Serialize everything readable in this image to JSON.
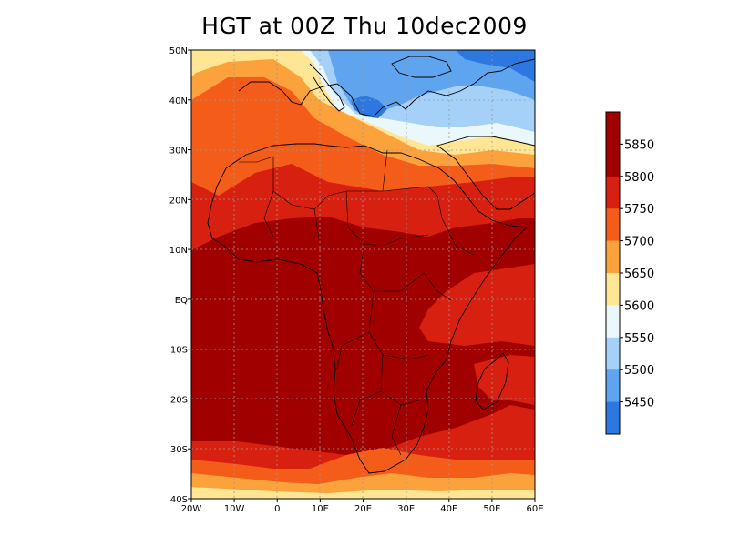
{
  "title": "HGT at 00Z Thu 10dec2009",
  "map": {
    "lon_range": [
      -20,
      60
    ],
    "lat_range": [
      -40,
      50
    ],
    "lat_ticks": [
      {
        "value": 50,
        "label": "50N"
      },
      {
        "value": 40,
        "label": "40N"
      },
      {
        "value": 30,
        "label": "30N"
      },
      {
        "value": 20,
        "label": "20N"
      },
      {
        "value": 10,
        "label": "10N"
      },
      {
        "value": 0,
        "label": "EQ"
      },
      {
        "value": -10,
        "label": "10S"
      },
      {
        "value": -20,
        "label": "20S"
      },
      {
        "value": -30,
        "label": "30S"
      },
      {
        "value": -40,
        "label": "40S"
      }
    ],
    "lon_ticks": [
      {
        "value": -20,
        "label": "20W"
      },
      {
        "value": -10,
        "label": "10W"
      },
      {
        "value": 0,
        "label": "0"
      },
      {
        "value": 10,
        "label": "10E"
      },
      {
        "value": 20,
        "label": "20E"
      },
      {
        "value": 30,
        "label": "30E"
      },
      {
        "value": 40,
        "label": "40E"
      },
      {
        "value": 50,
        "label": "50E"
      },
      {
        "value": 60,
        "label": "60E"
      }
    ],
    "gridlines": "dotted",
    "colorbar": {
      "labels": [
        "5850",
        "5800",
        "5750",
        "5700",
        "5650",
        "5600",
        "5550",
        "5500",
        "5450"
      ],
      "colors": [
        "#a00000",
        "#d7200f",
        "#f45c1a",
        "#fba23c",
        "#fee695",
        "#eaf7fb",
        "#a5d0f7",
        "#5fa4ee",
        "#2c78e0"
      ]
    }
  }
}
